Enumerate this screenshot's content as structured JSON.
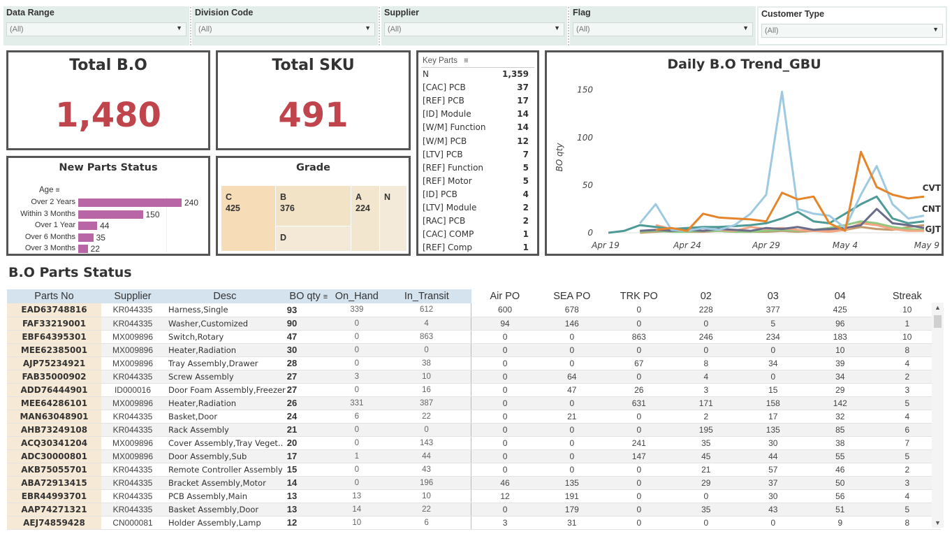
{
  "filters": [
    {
      "label": "Data Range",
      "value": "(All)"
    },
    {
      "label": "Division Code",
      "value": "(All)"
    },
    {
      "label": "Supplier",
      "value": "(All)"
    },
    {
      "label": "Flag",
      "value": "(All)"
    },
    {
      "label": "Customer Type",
      "value": "(All)"
    }
  ],
  "kpis": {
    "total_bo": {
      "title": "Total B.O",
      "value": "1,480"
    },
    "total_sku": {
      "title": "Total SKU",
      "value": "491"
    }
  },
  "new_parts": {
    "title": "New Parts Status",
    "axis_label": "Age",
    "rows": [
      {
        "label": "Over 2 Years",
        "value": 240
      },
      {
        "label": "Within 3 Months",
        "value": 150
      },
      {
        "label": "Over 1 Year",
        "value": 44
      },
      {
        "label": "Over 6 Months",
        "value": 35
      },
      {
        "label": "Over 3 Months",
        "value": 22
      }
    ],
    "max": 240,
    "bar_color": "#b866a6"
  },
  "grade": {
    "title": "Grade",
    "tiles": [
      {
        "label": "C",
        "value": "425"
      },
      {
        "label": "B",
        "value": "376"
      },
      {
        "label": "A",
        "value": "224"
      },
      {
        "label": "N",
        "value": ""
      },
      {
        "label": "D",
        "value": ""
      }
    ]
  },
  "key_parts": {
    "header": "Key Parts",
    "rows": [
      {
        "name": "N",
        "value": "1,359"
      },
      {
        "name": "[CAC] PCB",
        "value": "37"
      },
      {
        "name": "[REF] PCB",
        "value": "17"
      },
      {
        "name": "[ID] Module",
        "value": "14"
      },
      {
        "name": "[W/M] Function",
        "value": "14"
      },
      {
        "name": "[W/M] PCB",
        "value": "12"
      },
      {
        "name": "[LTV] PCB",
        "value": "7"
      },
      {
        "name": "[REF] Function",
        "value": "5"
      },
      {
        "name": "[REF] Motor",
        "value": "5"
      },
      {
        "name": "[ID] PCB",
        "value": "4"
      },
      {
        "name": "[LTV] Module",
        "value": "2"
      },
      {
        "name": "[RAC] PCB",
        "value": "2"
      },
      {
        "name": "[CAC] COMP",
        "value": "1"
      },
      {
        "name": "[REF] Comp",
        "value": "1"
      }
    ]
  },
  "chart_data": {
    "type": "line",
    "title": "Daily B.O Trend_GBU",
    "ylabel": "BO qty",
    "ylim": [
      0,
      160
    ],
    "yticks": [
      0,
      50,
      100,
      150
    ],
    "xticks": [
      "Apr 19",
      "Apr 24",
      "Apr 29",
      "May 4",
      "May 9"
    ],
    "x": [
      "Apr 19",
      "Apr 20",
      "Apr 21",
      "Apr 22",
      "Apr 23",
      "Apr 24",
      "Apr 25",
      "Apr 26",
      "Apr 27",
      "Apr 28",
      "Apr 29",
      "Apr 30",
      "May 1",
      "May 2",
      "May 3",
      "May 4",
      "May 5",
      "May 6",
      "May 7",
      "May 8",
      "May 9"
    ],
    "series": [
      {
        "name": "",
        "color": "#9ecae1",
        "values": [
          null,
          null,
          10,
          30,
          3,
          2,
          5,
          3,
          8,
          20,
          40,
          148,
          25,
          20,
          18,
          5,
          40,
          70,
          30,
          15,
          18
        ]
      },
      {
        "name": "CVT",
        "color": "#e6842a",
        "values": [
          null,
          null,
          null,
          3,
          5,
          2,
          20,
          16,
          15,
          14,
          12,
          42,
          35,
          38,
          10,
          2,
          85,
          48,
          40,
          36,
          38
        ]
      },
      {
        "name": "CNT",
        "color": "#4e9a96",
        "values": [
          0,
          2,
          8,
          6,
          4,
          5,
          6,
          6,
          7,
          8,
          10,
          15,
          22,
          12,
          10,
          20,
          30,
          38,
          15,
          10,
          12
        ]
      },
      {
        "name": "GJT",
        "color": "#6b6b8a",
        "values": [
          null,
          null,
          2,
          3,
          2,
          3,
          2,
          4,
          3,
          2,
          5,
          4,
          6,
          3,
          4,
          5,
          8,
          25,
          10,
          8,
          5
        ]
      },
      {
        "name": "",
        "color": "#f4a582",
        "values": [
          null,
          null,
          null,
          8,
          4,
          2,
          5,
          3,
          2,
          6,
          4,
          5,
          3,
          2,
          1,
          3,
          10,
          8,
          4,
          2,
          2
        ]
      },
      {
        "name": "",
        "color": "#8fc97f",
        "values": [
          null,
          null,
          1,
          2,
          1,
          1,
          2,
          2,
          1,
          1,
          2,
          3,
          2,
          3,
          5,
          8,
          12,
          10,
          6,
          4,
          3
        ]
      },
      {
        "name": "",
        "color": "#c49a6c",
        "values": [
          null,
          null,
          0,
          1,
          2,
          1,
          1,
          2,
          1,
          1,
          1,
          2,
          1,
          2,
          2,
          3,
          6,
          4,
          3,
          6,
          8
        ]
      }
    ]
  },
  "parts_status": {
    "title": "B.O Parts Status",
    "columns": [
      "Parts No",
      "Supplier",
      "Desc",
      "BO qty",
      "On_Hand",
      "In_Transit",
      "Air PO",
      "SEA PO",
      "TRK PO",
      "02",
      "03",
      "04",
      "Streak"
    ],
    "rows": [
      [
        "EAD63748816",
        "KR044335",
        "Harness,Single",
        "93",
        "339",
        "612",
        "600",
        "678",
        "0",
        "228",
        "377",
        "425",
        "10"
      ],
      [
        "FAF33219001",
        "KR044335",
        "Washer,Customized",
        "90",
        "0",
        "4",
        "94",
        "146",
        "0",
        "0",
        "5",
        "96",
        "1"
      ],
      [
        "EBF64395301",
        "MX009896",
        "Switch,Rotary",
        "47",
        "0",
        "863",
        "0",
        "0",
        "863",
        "246",
        "234",
        "183",
        "10"
      ],
      [
        "MEE62385001",
        "MX009896",
        "Heater,Radiation",
        "30",
        "0",
        "0",
        "0",
        "0",
        "0",
        "0",
        "0",
        "10",
        "8"
      ],
      [
        "AJP75234921",
        "MX009896",
        "Tray Assembly,Drawer",
        "28",
        "0",
        "38",
        "0",
        "0",
        "67",
        "8",
        "34",
        "39",
        "4"
      ],
      [
        "FAB35000902",
        "KR044335",
        "Screw Assembly",
        "27",
        "3",
        "10",
        "0",
        "64",
        "0",
        "4",
        "0",
        "34",
        "2"
      ],
      [
        "ADD76444901",
        "ID000016",
        "Door Foam Assembly,Freezer",
        "27",
        "0",
        "16",
        "0",
        "47",
        "26",
        "3",
        "15",
        "29",
        "3"
      ],
      [
        "MEE64286101",
        "MX009896",
        "Heater,Radiation",
        "26",
        "331",
        "387",
        "0",
        "0",
        "631",
        "171",
        "158",
        "142",
        "5"
      ],
      [
        "MAN63048901",
        "KR044335",
        "Basket,Door",
        "24",
        "6",
        "22",
        "0",
        "21",
        "0",
        "2",
        "17",
        "32",
        "4"
      ],
      [
        "AHB73249108",
        "KR044335",
        "Rack Assembly",
        "21",
        "0",
        "0",
        "0",
        "0",
        "0",
        "195",
        "135",
        "85",
        "6"
      ],
      [
        "ACQ30341204",
        "MX009896",
        "Cover Assembly,Tray Veget..",
        "20",
        "0",
        "143",
        "0",
        "0",
        "241",
        "35",
        "30",
        "38",
        "7"
      ],
      [
        "ADC30000801",
        "MX009896",
        "Door Assembly,Sub",
        "17",
        "1",
        "44",
        "0",
        "0",
        "147",
        "45",
        "44",
        "55",
        "5"
      ],
      [
        "AKB75055701",
        "KR044335",
        "Remote Controller Assembly",
        "15",
        "0",
        "43",
        "0",
        "0",
        "0",
        "21",
        "57",
        "46",
        "2"
      ],
      [
        "ABA72913415",
        "KR044335",
        "Bracket Assembly,Motor",
        "14",
        "0",
        "196",
        "46",
        "135",
        "0",
        "29",
        "37",
        "50",
        "3"
      ],
      [
        "EBR44993701",
        "KR044335",
        "PCB Assembly,Main",
        "13",
        "13",
        "10",
        "12",
        "191",
        "0",
        "0",
        "30",
        "56",
        "4"
      ],
      [
        "AAP74271321",
        "KR044335",
        "Basket Assembly,Door",
        "13",
        "14",
        "22",
        "0",
        "179",
        "0",
        "35",
        "43",
        "51",
        "5"
      ],
      [
        "AEJ74859428",
        "CN000081",
        "Holder Assembly,Lamp",
        "12",
        "10",
        "6",
        "3",
        "31",
        "0",
        "0",
        "0",
        "9",
        "8"
      ]
    ]
  }
}
